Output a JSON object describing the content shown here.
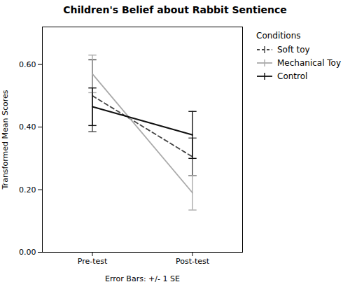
{
  "chart_data": {
    "type": "line",
    "title": "Children's Belief about Rabbit Sentience",
    "xlabel": "Error Bars: +/- 1 SE",
    "ylabel": "Transformed Mean Scores",
    "legend_title": "Conditions",
    "categories": [
      "Pre-test",
      "Post-test"
    ],
    "series": [
      {
        "name": "Soft toy",
        "color": "#444444",
        "line_style": "dashed",
        "values": [
          0.5,
          0.305
        ],
        "errors": [
          0.115,
          0.06
        ]
      },
      {
        "name": "Mechanical Toy",
        "color": "#aaaaaa",
        "line_style": "solid",
        "values": [
          0.57,
          0.19
        ],
        "errors": [
          0.06,
          0.055
        ]
      },
      {
        "name": "Control",
        "color": "#111111",
        "line_style": "solid",
        "values": [
          0.465,
          0.375
        ],
        "errors": [
          0.06,
          0.075
        ]
      }
    ],
    "ylim": [
      0.0,
      0.72
    ],
    "yticks": [
      {
        "value": 0.0,
        "label": "0.00"
      },
      {
        "value": 0.2,
        "label": "0.20"
      },
      {
        "value": 0.4,
        "label": "0.40"
      },
      {
        "value": 0.6,
        "label": "0.60"
      }
    ],
    "grid": false,
    "legend": "right"
  }
}
